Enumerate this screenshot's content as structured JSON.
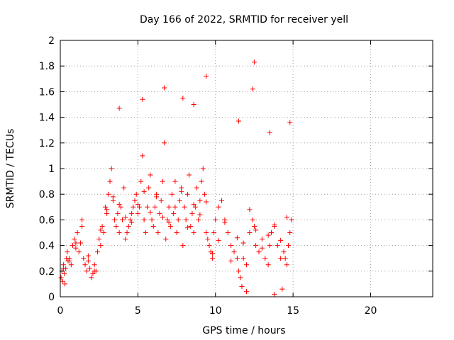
{
  "chart_data": {
    "type": "scatter",
    "title": "Day 166 of 2022, SRMTID for receiver yell",
    "xlabel": "GPS time / hours",
    "ylabel": "SRMTID / TECUs",
    "xlim": [
      0,
      24
    ],
    "ylim": [
      0,
      2
    ],
    "x_ticks": [
      0,
      5,
      10,
      15,
      20
    ],
    "x_tick_labels": [
      "0",
      "5",
      "10",
      "15",
      "20"
    ],
    "y_ticks": [
      0,
      0.2,
      0.4,
      0.6,
      0.8,
      1,
      1.2,
      1.4,
      1.6,
      1.8,
      2
    ],
    "y_tick_labels": [
      "0",
      "0.2",
      "0.4",
      "0.6",
      "0.8",
      "1",
      "1.2",
      "1.4",
      "1.6",
      "1.8",
      "2"
    ],
    "grid": true,
    "marker": "plus",
    "color": "#ff0000",
    "series": [
      {
        "name": "yell",
        "x": [
          0.05,
          0.1,
          0.15,
          0.2,
          0.25,
          0.3,
          0.35,
          0.4,
          0.45,
          0.5,
          0.6,
          0.7,
          0.8,
          0.9,
          1.0,
          1.1,
          1.2,
          1.3,
          1.4,
          1.5,
          1.6,
          1.7,
          1.8,
          1.9,
          2.0,
          2.1,
          2.2,
          2.3,
          2.4,
          2.5,
          2.6,
          2.7,
          2.8,
          2.9,
          3.0,
          3.1,
          3.2,
          3.3,
          3.4,
          3.5,
          3.6,
          3.7,
          3.8,
          3.9,
          4.0,
          4.1,
          4.2,
          4.3,
          4.4,
          4.5,
          4.6,
          4.7,
          4.8,
          4.9,
          5.0,
          5.1,
          5.2,
          5.3,
          5.4,
          5.5,
          5.6,
          5.7,
          5.8,
          5.9,
          6.0,
          6.1,
          6.2,
          6.3,
          6.4,
          6.5,
          6.6,
          6.7,
          6.8,
          6.9,
          7.0,
          7.1,
          7.2,
          7.3,
          7.4,
          7.5,
          7.6,
          7.7,
          7.8,
          7.9,
          8.0,
          8.1,
          8.2,
          8.3,
          8.4,
          8.5,
          8.6,
          8.7,
          8.8,
          8.9,
          9.0,
          9.1,
          9.2,
          9.3,
          9.4,
          9.5,
          9.6,
          9.7,
          9.8,
          9.9,
          10.0,
          10.2,
          10.4,
          10.6,
          10.8,
          11.0,
          11.2,
          11.4,
          11.5,
          11.6,
          11.8,
          12.0,
          12.2,
          12.4,
          12.5,
          12.6,
          12.8,
          13.0,
          13.2,
          13.4,
          13.5,
          13.6,
          13.8,
          14.0,
          14.2,
          14.4,
          14.5,
          14.6,
          14.7,
          14.8,
          14.9,
          0.2,
          0.6,
          1.0,
          1.4,
          1.8,
          2.2,
          2.6,
          3.0,
          3.4,
          3.8,
          4.2,
          4.6,
          5.0,
          5.4,
          5.8,
          6.2,
          6.6,
          7.0,
          7.4,
          7.8,
          8.2,
          8.6,
          9.0,
          9.4,
          9.8,
          10.2,
          10.6,
          11.0,
          11.4,
          11.8,
          12.2,
          12.6,
          13.0,
          13.4,
          13.8,
          14.2,
          14.6,
          3.8,
          5.3,
          6.7,
          7.9,
          8.6,
          9.4,
          11.5,
          12.4,
          12.5,
          13.5,
          14.8,
          12.0,
          11.7,
          13.8,
          14.3
        ],
        "y": [
          0.15,
          0.2,
          0.12,
          0.25,
          0.18,
          0.1,
          0.22,
          0.3,
          0.35,
          0.28,
          0.3,
          0.25,
          0.4,
          0.45,
          0.38,
          0.5,
          0.35,
          0.42,
          0.6,
          0.3,
          0.25,
          0.2,
          0.28,
          0.22,
          0.15,
          0.18,
          0.25,
          0.2,
          0.35,
          0.45,
          0.4,
          0.55,
          0.5,
          0.7,
          0.65,
          0.8,
          0.9,
          1.0,
          0.75,
          0.6,
          0.55,
          0.65,
          0.5,
          0.7,
          0.6,
          0.85,
          0.45,
          0.5,
          0.55,
          0.6,
          0.65,
          0.7,
          0.75,
          0.8,
          0.65,
          0.7,
          0.9,
          1.1,
          0.6,
          0.5,
          0.7,
          0.85,
          0.95,
          0.6,
          0.55,
          0.7,
          0.8,
          0.5,
          0.65,
          0.75,
          0.9,
          1.2,
          0.45,
          0.6,
          0.7,
          0.55,
          0.8,
          0.65,
          0.9,
          0.5,
          0.6,
          0.75,
          0.85,
          0.4,
          0.7,
          0.6,
          0.8,
          0.95,
          0.55,
          0.65,
          0.5,
          0.7,
          0.85,
          0.6,
          0.75,
          0.9,
          1.0,
          0.8,
          0.5,
          0.45,
          0.4,
          0.35,
          0.3,
          0.5,
          0.6,
          0.7,
          0.75,
          0.6,
          0.5,
          0.4,
          0.35,
          0.3,
          0.2,
          0.15,
          0.3,
          0.25,
          0.5,
          0.6,
          0.55,
          0.4,
          0.35,
          0.45,
          0.3,
          0.25,
          0.4,
          0.5,
          0.55,
          0.4,
          0.3,
          0.35,
          0.3,
          0.25,
          0.4,
          0.5,
          0.6,
          0.22,
          0.28,
          0.42,
          0.55,
          0.32,
          0.2,
          0.52,
          0.68,
          0.78,
          0.72,
          0.62,
          0.58,
          0.72,
          0.82,
          0.66,
          0.78,
          0.62,
          0.58,
          0.7,
          0.82,
          0.54,
          0.72,
          0.64,
          0.74,
          0.34,
          0.44,
          0.58,
          0.28,
          0.46,
          0.42,
          0.68,
          0.52,
          0.38,
          0.48,
          0.56,
          0.44,
          0.62,
          1.47,
          1.54,
          1.63,
          1.55,
          1.5,
          1.72,
          1.37,
          1.62,
          1.83,
          1.28,
          1.36,
          0.04,
          0.08,
          0.02,
          0.06
        ]
      }
    ]
  }
}
